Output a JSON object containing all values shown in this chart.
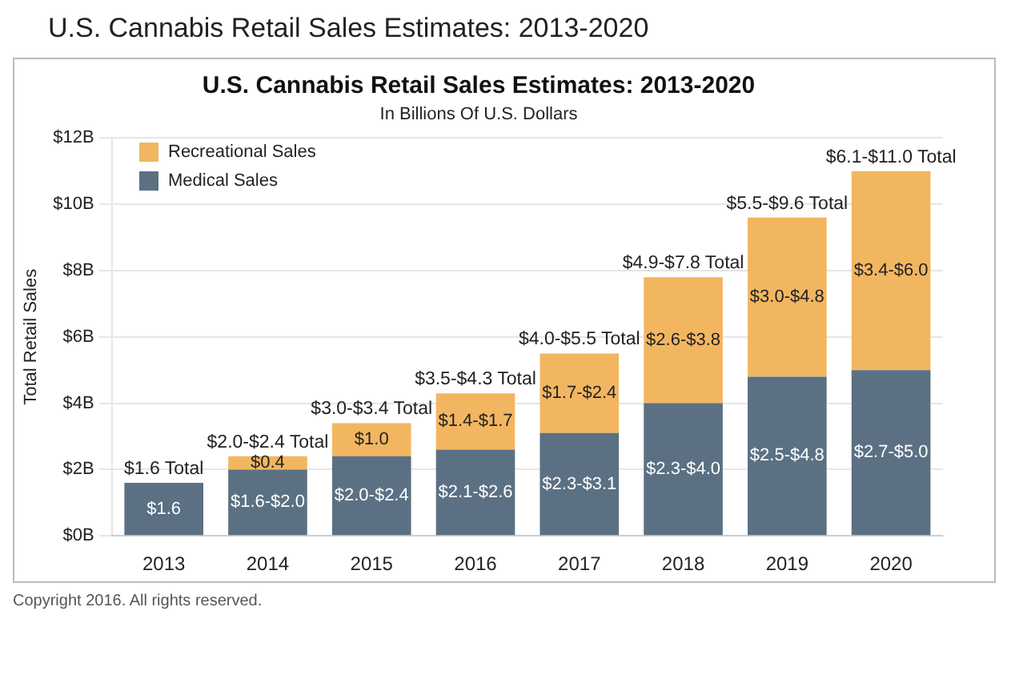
{
  "chart_data": {
    "type": "bar",
    "title": "U.S. Cannabis Retail Sales Estimates: 2013-2020",
    "subtitle": "In Billions Of U.S. Dollars",
    "ylabel": "Total Retail Sales",
    "categories": [
      "2013",
      "2014",
      "2015",
      "2016",
      "2017",
      "2018",
      "2019",
      "2020"
    ],
    "stacked": true,
    "series": [
      {
        "name": "Medical Sales",
        "color": "#5b7083",
        "values": [
          1.6,
          2.0,
          2.4,
          2.6,
          3.1,
          4.0,
          4.8,
          5.0
        ],
        "value_labels": [
          "$1.6",
          "$1.6-$2.0",
          "$2.0-$2.4",
          "$2.1-$2.6",
          "$2.3-$3.1",
          "$2.3-$4.0",
          "$2.5-$4.8",
          "$2.7-$5.0"
        ]
      },
      {
        "name": "Recreational Sales",
        "color": "#f2b661",
        "values": [
          null,
          0.4,
          1.0,
          1.7,
          2.4,
          3.8,
          4.8,
          6.0
        ],
        "value_labels": [
          null,
          "$0.4",
          "$1.0",
          "$1.4-$1.7",
          "$1.7-$2.4",
          "$2.6-$3.8",
          "$3.0-$4.8",
          "$3.4-$6.0"
        ]
      }
    ],
    "totals": [
      "$1.6 Total",
      "$2.0-$2.4 Total",
      "$3.0-$3.4 Total",
      "$3.5-$4.3 Total",
      "$4.0-$5.5 Total",
      "$4.9-$7.8 Total",
      "$5.5-$9.6 Total",
      "$6.1-$11.0 Total"
    ],
    "ylim": [
      0,
      12
    ],
    "yticks": [
      {
        "value": 0,
        "label": "$0B"
      },
      {
        "value": 2,
        "label": "$2B"
      },
      {
        "value": 4,
        "label": "$4B"
      },
      {
        "value": 6,
        "label": "$6B"
      },
      {
        "value": 8,
        "label": "$8B"
      },
      {
        "value": 10,
        "label": "$10B"
      },
      {
        "value": 12,
        "label": "$12B"
      }
    ],
    "grid": "y",
    "legend": "top left",
    "annotations": [
      "Copyright 2016. All rights reserved."
    ]
  }
}
